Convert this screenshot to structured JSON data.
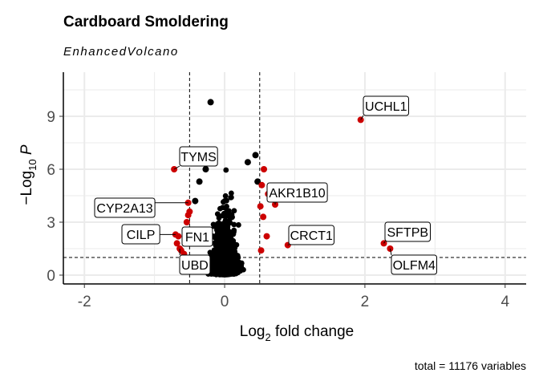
{
  "chart_data": {
    "type": "scatter",
    "title": "Cardboard Smoldering",
    "subtitle": "EnhancedVolcano",
    "xlabel_main": "Log",
    "xlabel_sub": "2",
    "xlabel_rest": " fold change",
    "ylabel_prefix": "−Log",
    "ylabel_sub": "10",
    "ylabel_var": "P",
    "caption": "total = 11176 variables",
    "xlim": [
      -2.3,
      4.3
    ],
    "ylim": [
      -0.5,
      11.5
    ],
    "x_ticks": [
      -2,
      0,
      2,
      4
    ],
    "y_ticks": [
      0,
      3,
      6,
      9
    ],
    "x_tick_labels": [
      "-2",
      "0",
      "2",
      "4"
    ],
    "y_tick_labels": [
      "0",
      "3",
      "6",
      "9"
    ],
    "fc_cutoff": 0.5,
    "p_cutoff_log10": 1,
    "grid": true,
    "colors": {
      "nonsig": "#000000",
      "sig": "#cc0000",
      "grid": "#ebebeb",
      "cutoff": "#000000"
    },
    "highlight_points": [
      {
        "x": -0.2,
        "y": 9.8,
        "sig": false
      },
      {
        "x": -0.27,
        "y": 6.0,
        "sig": false
      },
      {
        "x": 0.44,
        "y": 6.8,
        "sig": false
      },
      {
        "x": 0.33,
        "y": 6.4,
        "sig": false
      },
      {
        "x": -0.36,
        "y": 5.3,
        "sig": false
      },
      {
        "x": -0.42,
        "y": 4.2,
        "sig": false
      },
      {
        "x": 0.47,
        "y": 5.3,
        "sig": false
      },
      {
        "x": 0.51,
        "y": 3.9,
        "sig": true
      },
      {
        "x": 0.56,
        "y": 6.0,
        "sig": true
      },
      {
        "x": 0.53,
        "y": 5.1,
        "sig": true
      },
      {
        "x": 0.62,
        "y": 4.6,
        "sig": true
      },
      {
        "x": 0.55,
        "y": 3.3,
        "sig": true
      },
      {
        "x": 0.6,
        "y": 2.2,
        "sig": true
      },
      {
        "x": 0.52,
        "y": 1.4,
        "sig": true
      },
      {
        "x": -0.52,
        "y": 3.4,
        "sig": true
      },
      {
        "x": -0.54,
        "y": 3.0,
        "sig": true
      },
      {
        "x": -0.5,
        "y": 3.6,
        "sig": true
      },
      {
        "x": -0.66,
        "y": 2.2,
        "sig": true
      },
      {
        "x": -0.62,
        "y": 1.4,
        "sig": true
      },
      {
        "x": -0.68,
        "y": 1.8,
        "sig": true
      },
      {
        "x": -0.58,
        "y": 1.2,
        "sig": true
      }
    ],
    "labeled_genes": [
      {
        "name": "UCHL1",
        "x": 1.94,
        "y": 8.8,
        "sig": true
      },
      {
        "name": "TYMS",
        "x": -0.72,
        "y": 6.0,
        "sig": true
      },
      {
        "name": "AKR1B10",
        "x": 0.72,
        "y": 4.0,
        "sig": true
      },
      {
        "name": "CYP2A13",
        "x": -0.52,
        "y": 4.1,
        "sig": true
      },
      {
        "name": "SFTPB",
        "x": 2.27,
        "y": 1.8,
        "sig": true
      },
      {
        "name": "CRCT1",
        "x": 0.9,
        "y": 1.7,
        "sig": true
      },
      {
        "name": "CILP",
        "x": -0.7,
        "y": 2.3,
        "sig": true
      },
      {
        "name": "FN1",
        "x": -0.56,
        "y": 2.1,
        "sig": true
      },
      {
        "name": "OLFM4",
        "x": 2.36,
        "y": 1.5,
        "sig": true
      },
      {
        "name": "UBD",
        "x": -0.64,
        "y": 1.5,
        "sig": true
      }
    ]
  }
}
